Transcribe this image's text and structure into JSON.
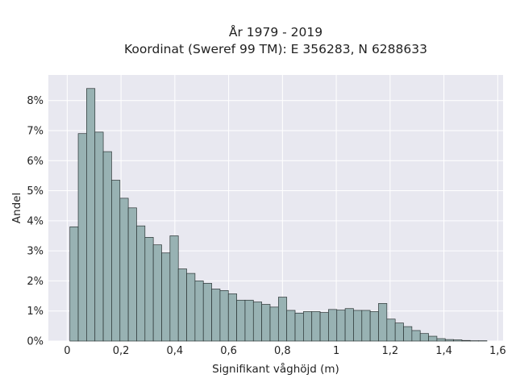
{
  "chart_data": {
    "type": "histogram",
    "title_lines": [
      "År 1979 - 2019",
      "Koordinat (Sweref 99 TM): E 356283, N 6288633"
    ],
    "xlabel": "Signifikant våghöjd (m)",
    "ylabel": "Andel",
    "xlim": [
      -0.07,
      1.62
    ],
    "ylim": [
      0,
      0.0885
    ],
    "xticks": [
      0,
      0.2,
      0.4,
      0.6,
      0.8,
      1.0,
      1.2,
      1.4,
      1.6
    ],
    "xtick_labels": [
      "0",
      "0,2",
      "0,4",
      "0,6",
      "0,8",
      "1",
      "1,2",
      "1,4",
      "1,6"
    ],
    "yticks": [
      0,
      0.01,
      0.02,
      0.03,
      0.04,
      0.05,
      0.06,
      0.07,
      0.08
    ],
    "ytick_labels": [
      "0%",
      "1%",
      "2%",
      "3%",
      "4%",
      "5%",
      "6%",
      "7%",
      "8%"
    ],
    "bin_width": 0.031,
    "bin_edges_start": 0.01,
    "values": [
      0.038,
      0.069,
      0.084,
      0.0695,
      0.063,
      0.0535,
      0.0475,
      0.0443,
      0.0383,
      0.0345,
      0.032,
      0.0293,
      0.035,
      0.024,
      0.0225,
      0.02,
      0.0192,
      0.0173,
      0.0168,
      0.0157,
      0.0136,
      0.0136,
      0.013,
      0.0122,
      0.0113,
      0.0146,
      0.0102,
      0.0093,
      0.0098,
      0.0098,
      0.0095,
      0.0105,
      0.0103,
      0.0108,
      0.0102,
      0.0102,
      0.0098,
      0.0125,
      0.0073,
      0.006,
      0.0048,
      0.0035,
      0.0025,
      0.0016,
      0.0008,
      0.0005,
      0.0004,
      0.0002,
      0.0001,
      0.0001
    ],
    "grid": true,
    "bar_color": "#98b2b3",
    "bar_edge_color": "#2b3434",
    "background_color": "#e8e8f0",
    "grid_color": "#ffffff"
  }
}
